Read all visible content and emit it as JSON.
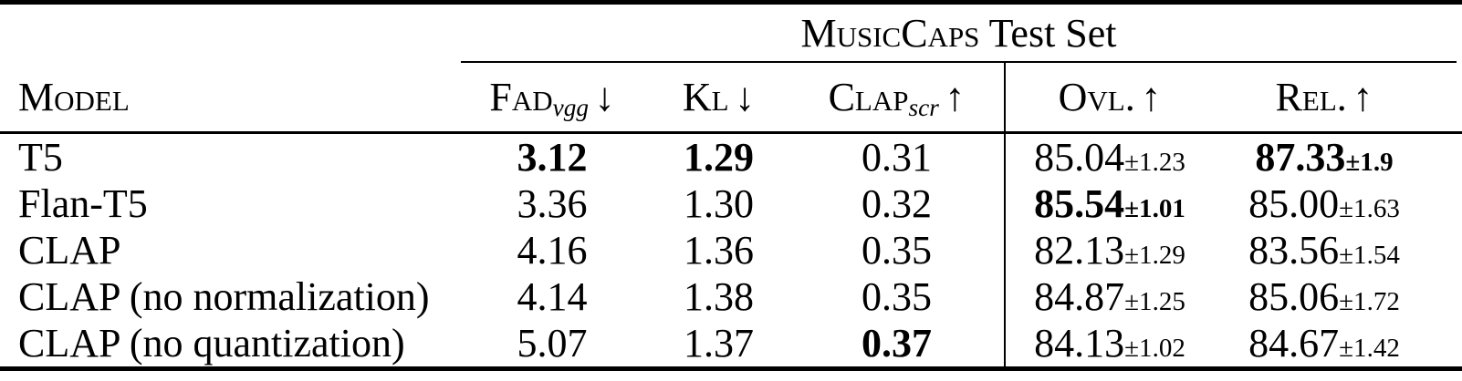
{
  "colors": {
    "background": "#ffffff",
    "text": "#000000",
    "rule": "#000000"
  },
  "table": {
    "group_header": {
      "title_smallcaps": "MusicCaps",
      "title_rest": " Test Set"
    },
    "columns": [
      {
        "key": "model",
        "label_sc": "Model",
        "sub": "",
        "arrow": ""
      },
      {
        "key": "fad",
        "label_sc": "Fad",
        "sub": "vgg",
        "arrow": "↓"
      },
      {
        "key": "kl",
        "label_sc": "Kl",
        "sub": "",
        "arrow": "↓"
      },
      {
        "key": "clap",
        "label_sc": "Clap",
        "sub": "scr",
        "arrow": "↑"
      },
      {
        "key": "ovl",
        "label_sc": "Ovl.",
        "sub": "",
        "arrow": "↑"
      },
      {
        "key": "rel",
        "label_sc": "Rel.",
        "sub": "",
        "arrow": "↑"
      }
    ],
    "rows": [
      {
        "model": "T5",
        "cells": [
          {
            "v": "3.12",
            "b": true
          },
          {
            "v": "1.29",
            "b": true
          },
          {
            "v": "0.31",
            "b": false
          },
          {
            "v": "85.04",
            "pm": "±1.23",
            "b": false
          },
          {
            "v": "87.33",
            "pm": "±1.9",
            "b": true
          }
        ]
      },
      {
        "model": "Flan-T5",
        "cells": [
          {
            "v": "3.36",
            "b": false
          },
          {
            "v": "1.30",
            "b": false
          },
          {
            "v": "0.32",
            "b": false
          },
          {
            "v": "85.54",
            "pm": "±1.01",
            "b": true
          },
          {
            "v": "85.00",
            "pm": "±1.63",
            "b": false
          }
        ]
      },
      {
        "model": "CLAP",
        "cells": [
          {
            "v": "4.16",
            "b": false
          },
          {
            "v": "1.36",
            "b": false
          },
          {
            "v": "0.35",
            "b": false
          },
          {
            "v": "82.13",
            "pm": "±1.29",
            "b": false
          },
          {
            "v": "83.56",
            "pm": "±1.54",
            "b": false
          }
        ]
      },
      {
        "model": "CLAP (no normalization)",
        "cells": [
          {
            "v": "4.14",
            "b": false
          },
          {
            "v": "1.38",
            "b": false
          },
          {
            "v": "0.35",
            "b": false
          },
          {
            "v": "84.87",
            "pm": "±1.25",
            "b": false
          },
          {
            "v": "85.06",
            "pm": "±1.72",
            "b": false
          }
        ]
      },
      {
        "model": "CLAP (no quantization)",
        "cells": [
          {
            "v": "5.07",
            "b": false
          },
          {
            "v": "1.37",
            "b": false
          },
          {
            "v": "0.37",
            "b": true
          },
          {
            "v": "84.13",
            "pm": "±1.02",
            "b": false
          },
          {
            "v": "84.67",
            "pm": "±1.42",
            "b": false
          }
        ]
      }
    ]
  }
}
